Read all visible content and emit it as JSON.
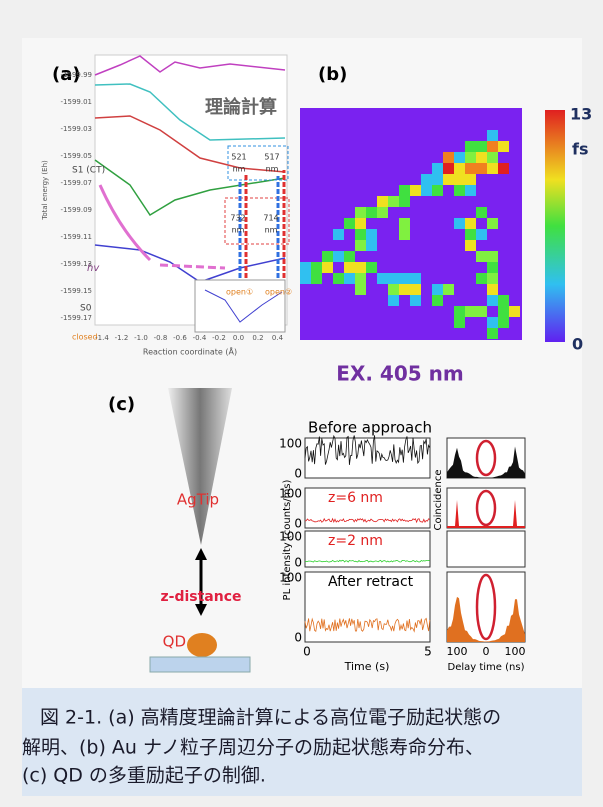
{
  "panel_a": {
    "label": "(a)",
    "overlay": "理論計算",
    "y_axis_label": "Total energy (Eh)",
    "x_axis_label": "Reaction coordinate (Å)",
    "y_ticks": [
      "-1599.99",
      "-1599.01",
      "-1599.03",
      "-1599.05",
      "-1599.07",
      "-1599.09",
      "-1599.11",
      "-1599.13",
      "-1599.15",
      "-1599.17"
    ],
    "x_ticks": [
      "-1.4",
      "-1.2",
      "-1.0",
      "-0.8",
      "-0.6",
      "-0.4",
      "-0.2",
      "0.0",
      "0.2",
      "0.4"
    ],
    "state_s1": "S1 (CT)",
    "state_s0": "S0",
    "hv": "hv",
    "closed": "closed",
    "open1": "open①",
    "open2": "open②",
    "blue_box": [
      "521",
      "nm",
      "517",
      "nm"
    ],
    "red_box": [
      "732",
      "nm",
      "714",
      "nm"
    ]
  },
  "panel_b": {
    "label": "(b)",
    "colorbar_max": "13",
    "colorbar_unit": "fs",
    "colorbar_min": "0"
  },
  "panel_c": {
    "label": "(c)",
    "title": "EX. 405 nm",
    "tip": "AgTip",
    "distance": "z-distance",
    "dot": "QD",
    "traces": [
      "Before approach",
      "z=6 nm",
      "z=2 nm",
      "After retract"
    ],
    "y_ticks": [
      "100",
      "0"
    ],
    "y_label": "PL intensity (counts/ms)",
    "x_label": "Time (s)",
    "x_ticks": [
      "0",
      "5"
    ],
    "right_y_label": "Coincidence",
    "right_x_ticks": [
      "100",
      "0",
      "100"
    ],
    "right_x_label": "Delay time (ns)"
  },
  "caption": {
    "lines": [
      "図 2-1. (a) 高精度理論計算による高位電子励起状態の",
      "解明、(b) Au ナノ粒子周辺分子の励起状態寿命分布、",
      "(c) QD の多重励起子の制御."
    ]
  }
}
